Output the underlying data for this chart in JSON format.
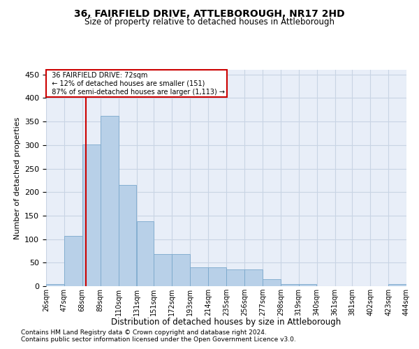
{
  "title1": "36, FAIRFIELD DRIVE, ATTLEBOROUGH, NR17 2HD",
  "title2": "Size of property relative to detached houses in Attleborough",
  "xlabel": "Distribution of detached houses by size in Attleborough",
  "ylabel": "Number of detached properties",
  "footnote1": "Contains HM Land Registry data © Crown copyright and database right 2024.",
  "footnote2": "Contains public sector information licensed under the Open Government Licence v3.0.",
  "annotation_line1": "36 FAIRFIELD DRIVE: 72sqm",
  "annotation_line2": "← 12% of detached houses are smaller (151)",
  "annotation_line3": "87% of semi-detached houses are larger (1,113) →",
  "property_size_sqm": 72,
  "bar_color": "#b8d0e8",
  "bar_edge_color": "#7aa8cc",
  "vline_color": "#cc0000",
  "annotation_box_color": "#cc0000",
  "grid_color": "#c8d4e4",
  "bg_color": "#e8eef8",
  "bin_edges": [
    26,
    47,
    68,
    89,
    110,
    131,
    151,
    172,
    193,
    214,
    235,
    256,
    277,
    298,
    319,
    340,
    361,
    381,
    402,
    423,
    444
  ],
  "bar_heights": [
    5,
    107,
    301,
    362,
    215,
    138,
    68,
    68,
    40,
    40,
    35,
    35,
    15,
    5,
    5,
    0,
    0,
    0,
    0,
    5
  ],
  "ylim": [
    0,
    460
  ],
  "yticks": [
    0,
    50,
    100,
    150,
    200,
    250,
    300,
    350,
    400,
    450
  ]
}
